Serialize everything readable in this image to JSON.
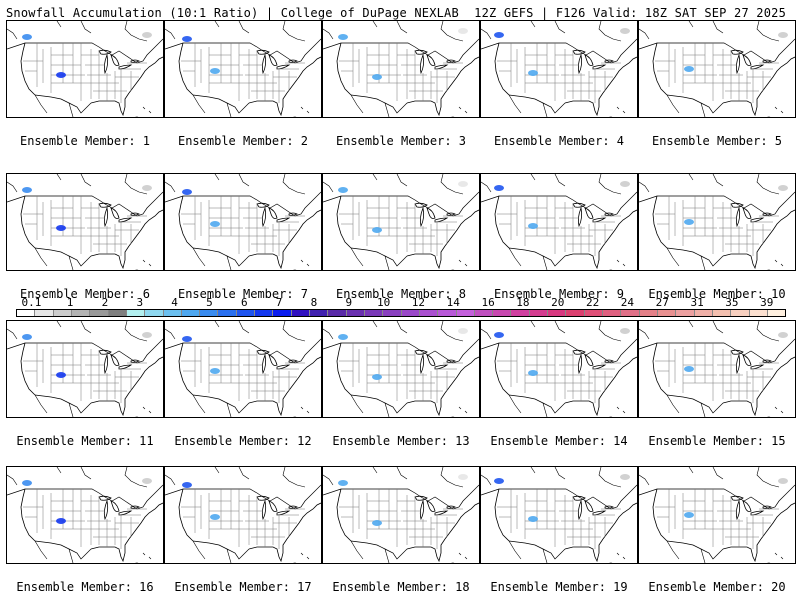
{
  "header": {
    "title": "Snowfall Accumulation (10:1 Ratio) | College of DuPage NEXLAB",
    "run_info": "12Z GEFS | F126 Valid: 18Z SAT SEP 27 2025"
  },
  "panels": [
    {
      "label": "Ensemble Member: 1"
    },
    {
      "label": "Ensemble Member: 2"
    },
    {
      "label": "Ensemble Member: 3"
    },
    {
      "label": "Ensemble Member: 4"
    },
    {
      "label": "Ensemble Member: 5"
    },
    {
      "label": "Ensemble Member: 6"
    },
    {
      "label": "Ensemble Member: 7"
    },
    {
      "label": "Ensemble Member: 8"
    },
    {
      "label": "Ensemble Member: 9"
    },
    {
      "label": "Ensemble Member: 10"
    },
    {
      "label": "Ensemble Member: 11"
    },
    {
      "label": "Ensemble Member: 12"
    },
    {
      "label": "Ensemble Member: 13"
    },
    {
      "label": "Ensemble Member: 14"
    },
    {
      "label": "Ensemble Member: 15"
    },
    {
      "label": "Ensemble Member: 16"
    },
    {
      "label": "Ensemble Member: 17"
    },
    {
      "label": "Ensemble Member: 18"
    },
    {
      "label": "Ensemble Member: 19"
    },
    {
      "label": "Ensemble Member: 20"
    }
  ],
  "colorbar": {
    "labels": [
      "0.1",
      "1",
      "2",
      "3",
      "4",
      "5",
      "6",
      "7",
      "8",
      "9",
      "10",
      "12",
      "14",
      "16",
      "18",
      "20",
      "22",
      "24",
      "27",
      "31",
      "35",
      "39"
    ],
    "colors": [
      "#ffffff",
      "#e6e6e6",
      "#cccccc",
      "#b3b3b3",
      "#999999",
      "#7f7f7f",
      "#b3f0f0",
      "#8fd8f0",
      "#6cc0f0",
      "#4fa8f0",
      "#3a8cf0",
      "#2a70f0",
      "#1f55f0",
      "#1438f0",
      "#0a1cf0",
      "#3010c0",
      "#4020b0",
      "#5a2aa8",
      "#6a30b0",
      "#7a38b8",
      "#8a40c0",
      "#9a48c8",
      "#aa50d0",
      "#b858d8",
      "#c460dc",
      "#c050c0",
      "#c848b0",
      "#d040a0",
      "#d43c90",
      "#d83880",
      "#dc4070",
      "#e05078",
      "#e06080",
      "#e07088",
      "#e48088",
      "#e89090",
      "#eca0a0",
      "#f0b0a8",
      "#f4c0b0",
      "#f8d0c0",
      "#fce0d0",
      "#fff0e0"
    ]
  }
}
